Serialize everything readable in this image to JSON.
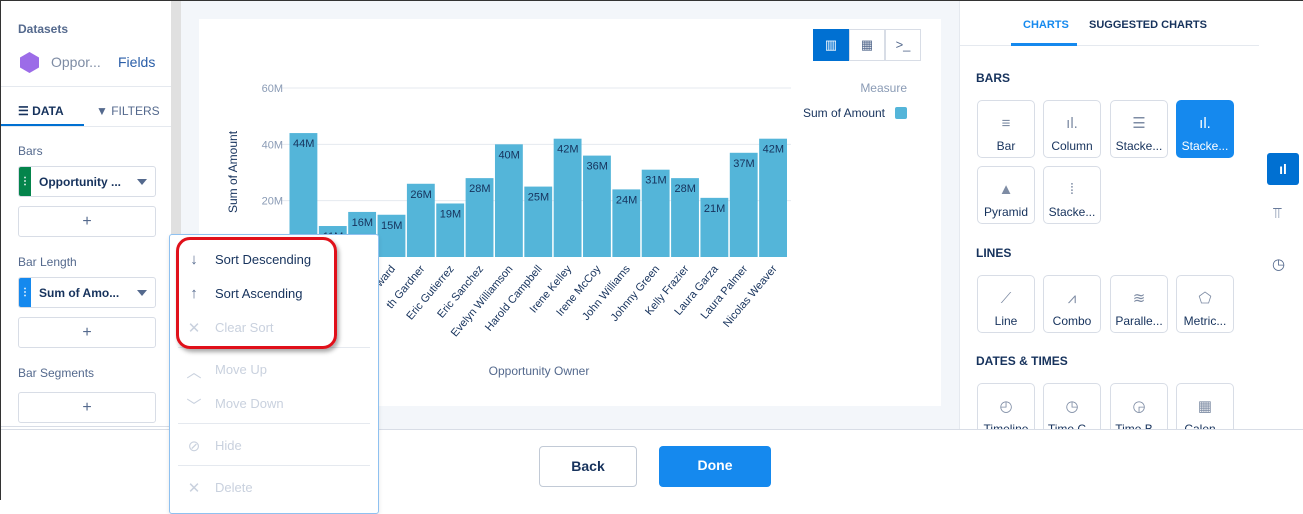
{
  "left_panel": {
    "datasets_label": "Datasets",
    "dataset_name": "Oppor...",
    "fields_link": "Fields",
    "tabs": [
      {
        "label": "DATA",
        "icon": "list-icon",
        "active": true
      },
      {
        "label": "FILTERS",
        "icon": "filter-icon",
        "active": false
      }
    ],
    "sections": [
      {
        "label": "Bars",
        "field": "Opportunity ...",
        "color": "#04844b"
      },
      {
        "label": "Bar Length",
        "field": "Sum of Amo...",
        "color": "#1589ee"
      },
      {
        "label": "Bar Segments"
      }
    ],
    "add_label": "+"
  },
  "toolbar": {
    "icons": [
      "chart-icon",
      "table-icon",
      "query-icon"
    ],
    "active": "chart-icon"
  },
  "chart_data": {
    "type": "bar",
    "xlabel": "Opportunity Owner",
    "ylabel": "Sum of Amount",
    "ylim": [
      0,
      60
    ],
    "yticks": [
      "20M",
      "40M",
      "60M"
    ],
    "legend": {
      "title": "Measure",
      "entries": [
        {
          "name": "Sum of Amount",
          "color": "#54b5d9"
        }
      ],
      "placement": "top-right"
    },
    "categories": [
      "",
      "",
      "",
      "ward",
      "th Gardner",
      "Eric Gutierrez",
      "Eric Sanchez",
      "Evelyn Williamson",
      "Harold Campbell",
      "Irene Kelley",
      "Irene McCoy",
      "John Williams",
      "Johnny Green",
      "Kelly Frazier",
      "Laura Garza",
      "Laura Palmer",
      "Nicolas Weaver"
    ],
    "values": [
      44,
      11,
      16,
      15,
      26,
      19,
      28,
      40,
      25,
      42,
      36,
      24,
      31,
      28,
      21,
      37,
      42
    ],
    "data_labels": [
      "44M",
      "11M",
      "16M",
      "15M",
      "26M",
      "19M",
      "28M",
      "40M",
      "25M",
      "42M",
      "36M",
      "24M",
      "31M",
      "28M",
      "21M",
      "37M",
      "42M"
    ],
    "bar_color": "#54b5d9",
    "grid": true
  },
  "menu": {
    "items": [
      {
        "label": "Sort Descending",
        "icon": "arrow-down-icon",
        "enabled": true
      },
      {
        "label": "Sort Ascending",
        "icon": "arrow-up-icon",
        "enabled": true
      },
      {
        "label": "Clear Sort",
        "icon": "close-icon",
        "enabled": false
      },
      {
        "label": "Move Up",
        "icon": "chevron-up-icon",
        "enabled": false
      },
      {
        "label": "Move Down",
        "icon": "chevron-down-icon",
        "enabled": false
      },
      {
        "label": "Hide",
        "icon": "hide-icon",
        "enabled": false
      },
      {
        "label": "Delete",
        "icon": "close-icon",
        "enabled": false
      }
    ]
  },
  "right_panel": {
    "tabs": [
      {
        "label": "CHARTS",
        "active": true
      },
      {
        "label": "SUGGESTED CHARTS",
        "active": false
      }
    ],
    "groups": [
      {
        "title": "BARS",
        "tiles": [
          {
            "label": "Bar"
          },
          {
            "label": "Column"
          },
          {
            "label": "Stacke..."
          },
          {
            "label": "Stacke...",
            "selected": true
          },
          {
            "label": "Pyramid"
          },
          {
            "label": "Stacke..."
          }
        ]
      },
      {
        "title": "LINES",
        "tiles": [
          {
            "label": "Line"
          },
          {
            "label": "Combo"
          },
          {
            "label": "Paralle..."
          },
          {
            "label": "Metric..."
          }
        ]
      },
      {
        "title": "DATES & TIMES",
        "tiles": [
          {
            "label": "Timeline"
          },
          {
            "label": "Time C..."
          },
          {
            "label": "Time B..."
          },
          {
            "label": "Calen..."
          }
        ]
      }
    ]
  },
  "side_icons": [
    "chart-type-icon",
    "paint-roller-icon",
    "clock-icon"
  ],
  "footer": {
    "back": "Back",
    "done": "Done"
  },
  "colors": {
    "accent": "#1589ee",
    "highlight": "#e0101a"
  }
}
